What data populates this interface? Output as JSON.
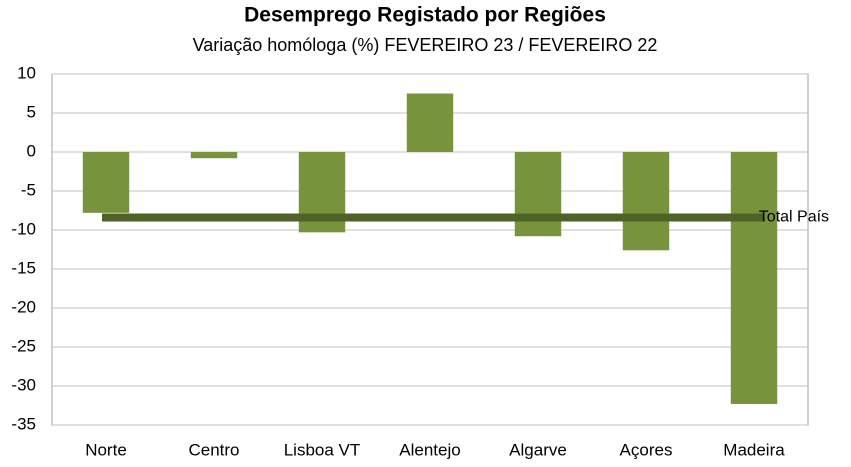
{
  "chart_data": {
    "type": "bar",
    "title": "Desemprego Registado por Regiões",
    "subtitle": "Variação homóloga (%) FEVEREIRO 23 / FEVEREIRO 22",
    "categories": [
      "Norte",
      "Centro",
      "Lisboa VT",
      "Alentejo",
      "Algarve",
      "Açores",
      "Madeira"
    ],
    "values": [
      -7.8,
      -0.8,
      -10.3,
      7.5,
      -10.8,
      -12.6,
      -32.3
    ],
    "color": "#77933c",
    "reference_line": {
      "name": "Total País",
      "value": -8.4,
      "color": "#4f6228"
    },
    "ylim": [
      -35,
      10
    ],
    "yticks": [
      10,
      5,
      0,
      -5,
      -10,
      -15,
      -20,
      -25,
      -30,
      -35
    ],
    "grid": true
  }
}
